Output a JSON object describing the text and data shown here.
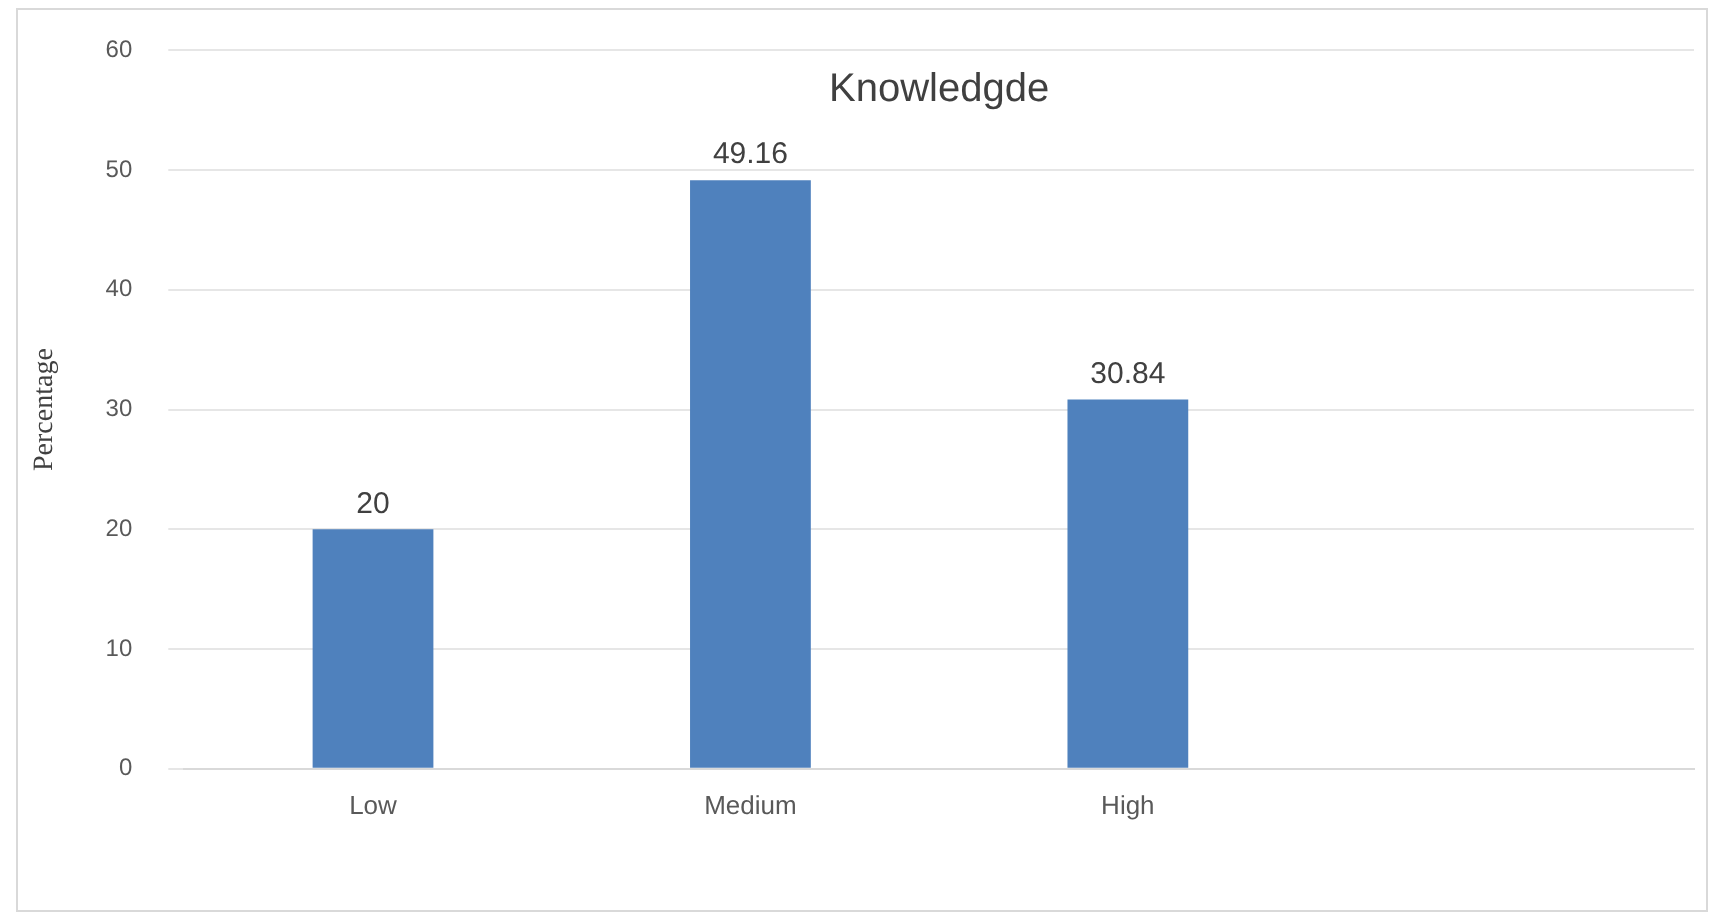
{
  "chart_data": {
    "type": "bar",
    "title": "Knowledgde",
    "ylabel": "Percentage",
    "categories": [
      "Low",
      "Medium",
      "High",
      null
    ],
    "values": [
      20,
      49.16,
      30.84,
      null
    ],
    "color": "#4f81bd",
    "ylim": [
      0,
      60
    ],
    "yticks": [
      0,
      10,
      20,
      30,
      40,
      50,
      60
    ],
    "grid": "y",
    "data_labels": true,
    "legend": false
  }
}
